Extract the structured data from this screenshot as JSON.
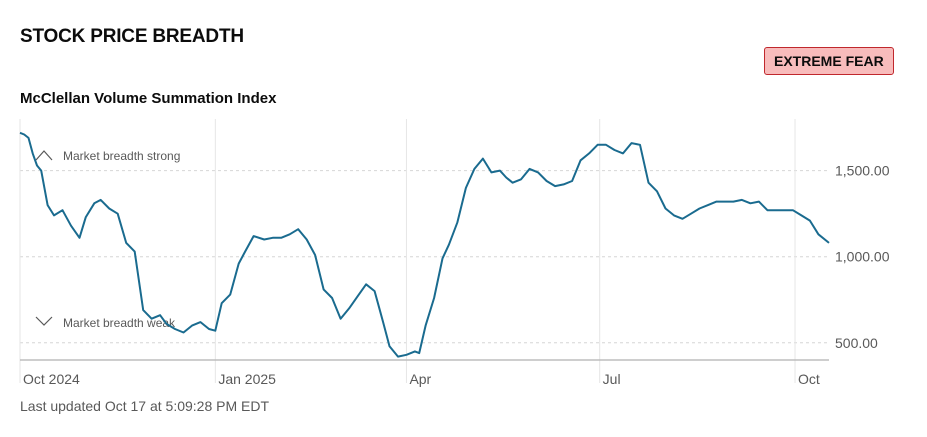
{
  "header": {
    "title": "STOCK PRICE BREADTH",
    "badge": "EXTREME FEAR",
    "subtitle": "McClellan Volume Summation Index"
  },
  "footer": {
    "updated": "Last updated Oct 17 at 5:09:28 PM EDT"
  },
  "colors": {
    "line": "#1a6b8f",
    "badge_bg": "#f8bcbc",
    "badge_border": "#c0282d"
  },
  "chart_data": {
    "type": "line",
    "title": "McClellan Volume Summation Index",
    "ylim": [
      400,
      1800
    ],
    "yticks": [
      {
        "value": 500,
        "label": "500.00"
      },
      {
        "value": 1000,
        "label": "1,000.00"
      },
      {
        "value": 1500,
        "label": "1,500.00"
      }
    ],
    "xticks": [
      {
        "date": "2024-10-01",
        "label": "Oct 2024"
      },
      {
        "date": "2025-01-01",
        "label": "Jan 2025"
      },
      {
        "date": "2025-04-01",
        "label": "Apr"
      },
      {
        "date": "2025-07-01",
        "label": "Jul"
      },
      {
        "date": "2025-10-01",
        "label": "Oct"
      }
    ],
    "xlim": [
      "2024-10-01",
      "2025-10-17"
    ],
    "annotations": {
      "top": "Market breadth strong",
      "bottom": "Market breadth weak"
    },
    "grid": true,
    "series": [
      {
        "x": [
          "2024-10-01",
          "2024-10-03",
          "2024-10-05",
          "2024-10-07",
          "2024-10-09",
          "2024-10-11",
          "2024-10-14",
          "2024-10-17",
          "2024-10-21",
          "2024-10-25",
          "2024-10-29",
          "2024-11-01",
          "2024-11-05",
          "2024-11-08",
          "2024-11-12",
          "2024-11-16",
          "2024-11-20",
          "2024-11-24",
          "2024-11-28",
          "2024-12-02",
          "2024-12-06",
          "2024-12-09",
          "2024-12-13",
          "2024-12-17",
          "2024-12-21",
          "2024-12-25",
          "2024-12-29",
          "2025-01-01",
          "2025-01-04",
          "2025-01-08",
          "2025-01-12",
          "2025-01-15",
          "2025-01-19",
          "2025-01-24",
          "2025-01-28",
          "2025-02-01",
          "2025-02-05",
          "2025-02-09",
          "2025-02-13",
          "2025-02-17",
          "2025-02-21",
          "2025-02-25",
          "2025-03-01",
          "2025-03-05",
          "2025-03-09",
          "2025-03-13",
          "2025-03-17",
          "2025-03-21",
          "2025-03-24",
          "2025-03-28",
          "2025-04-01",
          "2025-04-05",
          "2025-04-07",
          "2025-04-10",
          "2025-04-14",
          "2025-04-18",
          "2025-04-21",
          "2025-04-25",
          "2025-04-29",
          "2025-05-03",
          "2025-05-07",
          "2025-05-11",
          "2025-05-15",
          "2025-05-18",
          "2025-05-21",
          "2025-05-25",
          "2025-05-29",
          "2025-06-02",
          "2025-06-06",
          "2025-06-10",
          "2025-06-14",
          "2025-06-18",
          "2025-06-22",
          "2025-06-26",
          "2025-06-30",
          "2025-07-04",
          "2025-07-08",
          "2025-07-12",
          "2025-07-16",
          "2025-07-20",
          "2025-07-24",
          "2025-07-28",
          "2025-08-01",
          "2025-08-05",
          "2025-08-09",
          "2025-08-13",
          "2025-08-17",
          "2025-08-21",
          "2025-08-25",
          "2025-08-29",
          "2025-09-02",
          "2025-09-06",
          "2025-09-10",
          "2025-09-14",
          "2025-09-18",
          "2025-09-22",
          "2025-09-26",
          "2025-09-30",
          "2025-10-04",
          "2025-10-08",
          "2025-10-12",
          "2025-10-17"
        ],
        "y": [
          1720,
          1710,
          1690,
          1600,
          1530,
          1500,
          1300,
          1240,
          1270,
          1180,
          1110,
          1230,
          1310,
          1330,
          1280,
          1250,
          1080,
          1030,
          690,
          640,
          660,
          610,
          580,
          560,
          600,
          620,
          580,
          570,
          730,
          780,
          960,
          1030,
          1120,
          1100,
          1110,
          1110,
          1130,
          1160,
          1100,
          1010,
          810,
          760,
          640,
          700,
          770,
          840,
          800,
          620,
          480,
          420,
          430,
          450,
          440,
          600,
          760,
          990,
          1070,
          1200,
          1400,
          1510,
          1570,
          1490,
          1500,
          1460,
          1430,
          1450,
          1510,
          1490,
          1440,
          1410,
          1420,
          1440,
          1560,
          1600,
          1650,
          1650,
          1620,
          1600,
          1660,
          1650,
          1430,
          1380,
          1280,
          1240,
          1220,
          1250,
          1280,
          1300,
          1320,
          1320,
          1320,
          1330,
          1310,
          1320,
          1270,
          1270,
          1270,
          1270,
          1240,
          1210,
          1130,
          1080
        ]
      }
    ]
  }
}
